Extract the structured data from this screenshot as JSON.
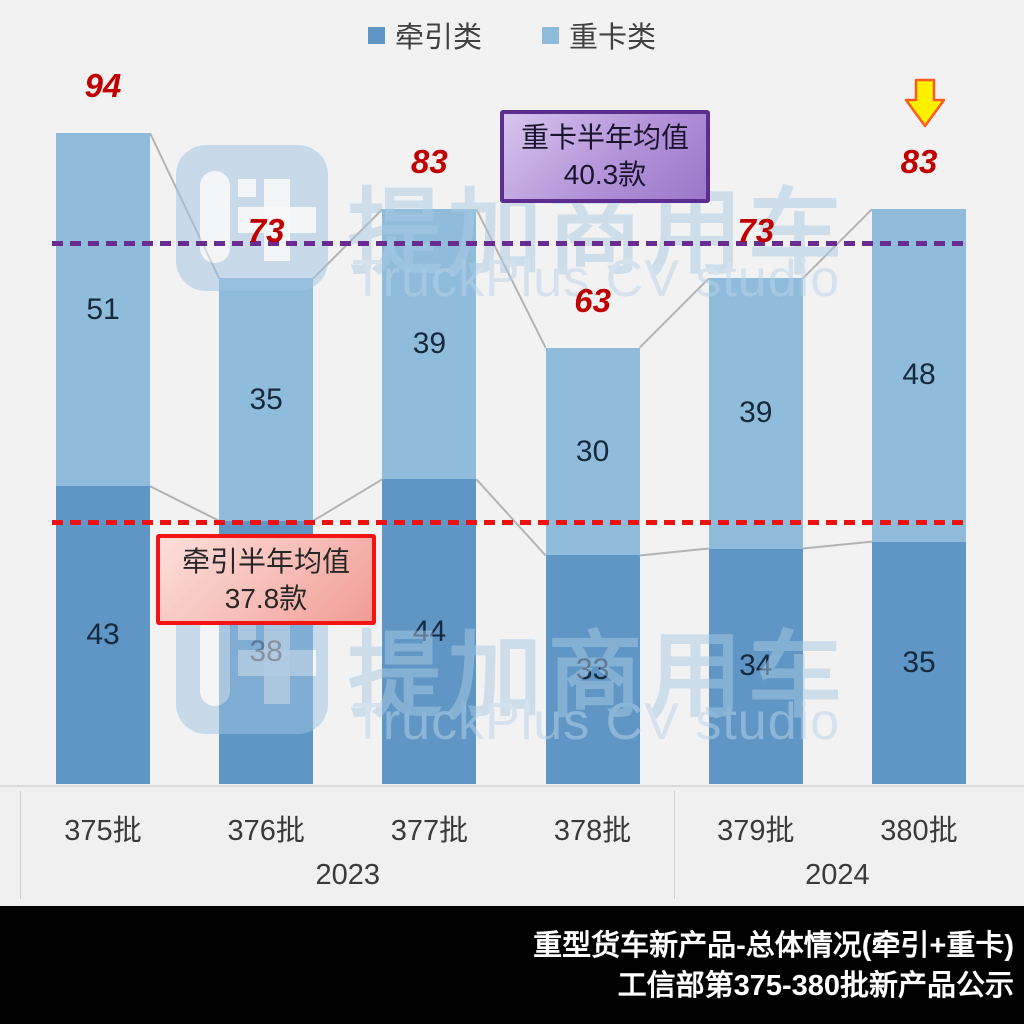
{
  "legend": {
    "items": [
      {
        "label": "牵引类"
      },
      {
        "label": "重卡类"
      }
    ]
  },
  "chart_data": {
    "type": "bar",
    "stacked": true,
    "title": "",
    "categories": [
      "375批",
      "376批",
      "377批",
      "378批",
      "379批",
      "380批"
    ],
    "series": [
      {
        "name": "牵引类",
        "color": "#6096C5",
        "values": [
          43,
          38,
          44,
          33,
          34,
          35
        ]
      },
      {
        "name": "重卡类",
        "color": "#8FBCDB",
        "values": [
          51,
          35,
          39,
          30,
          39,
          48
        ]
      }
    ],
    "totals": [
      94,
      73,
      83,
      63,
      73,
      83
    ],
    "year_groups": [
      {
        "label": "2023",
        "span": 4
      },
      {
        "label": "2024",
        "span": 2
      }
    ],
    "reference_lines": [
      {
        "label": "牵引半年均值",
        "value": 37.8,
        "color": "#EE1111",
        "style": "dashed",
        "stacked_at": 37.8
      },
      {
        "label": "重卡半年均值",
        "value": 40.3,
        "color": "#6A2C91",
        "style": "dashed",
        "stacked_at": 78.1
      }
    ],
    "ylim": [
      0,
      100
    ],
    "grid": false,
    "legend_position": "top",
    "series_connector_lines": true
  },
  "annotations": {
    "heavy_truck_avg_box": {
      "title": "重卡半年均值",
      "value": "40.3款"
    },
    "tractor_avg_box": {
      "title": "牵引半年均值",
      "value": "37.8款"
    },
    "highlight_arrow": {
      "type": "down-arrow",
      "target_category": "380批"
    }
  },
  "watermarks": [
    {
      "title": "提加商用车",
      "subtitle": "TruckPlus CV studio"
    },
    {
      "title": "提加商用车",
      "subtitle": "TruckPlus CV studio"
    }
  ],
  "footer": {
    "line1": "重型货车新产品-总体情况(牵引+重卡)",
    "line2": "工信部第375-380批新产品公示"
  },
  "colors": {
    "background": "#F2F2F2",
    "tractor_bar": "#6096C5",
    "heavy_bar": "#8FBCDB",
    "total_label": "#C00000",
    "tractor_ref_line": "#EE1111",
    "heavy_ref_line": "#6A2C91",
    "connector_line": "#B3B3B3",
    "arrow_fill": "#FFF000",
    "arrow_stroke": "#FF5A1F",
    "footer_bg": "#000000",
    "footer_text": "#FFFFFF"
  }
}
